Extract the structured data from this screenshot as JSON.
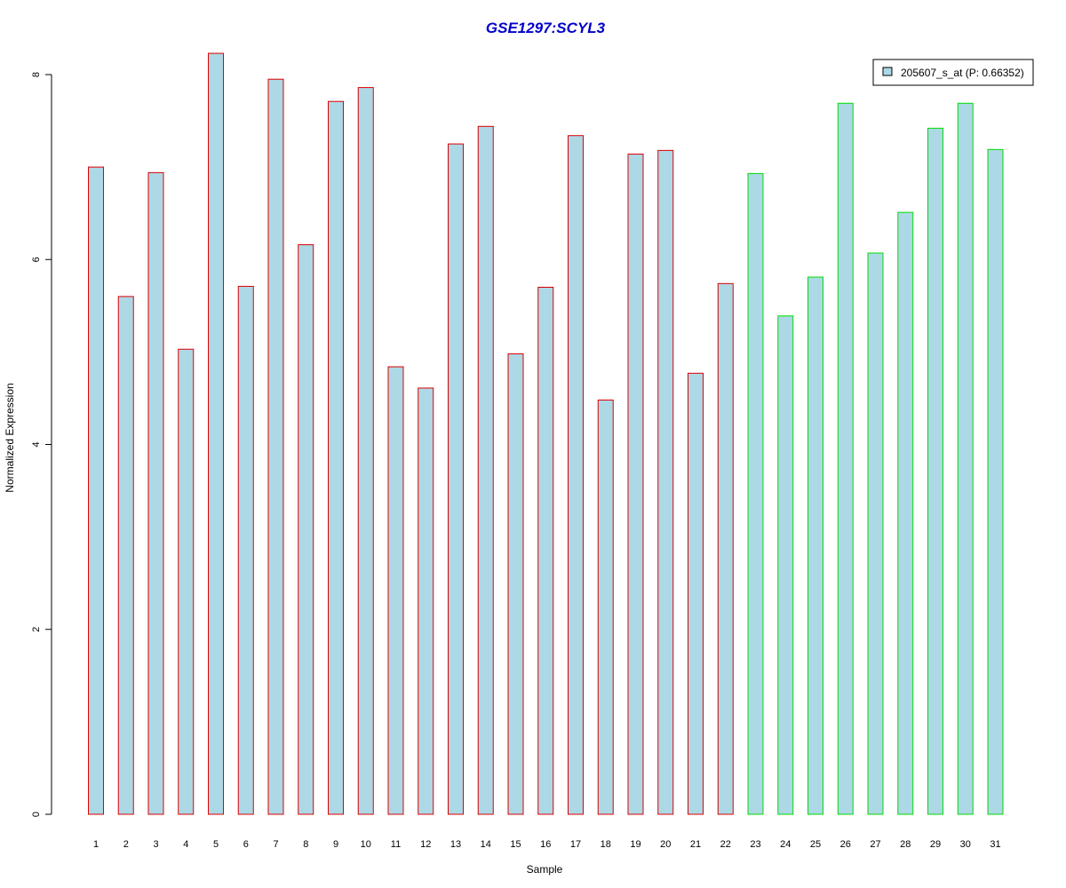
{
  "chart_data": {
    "type": "bar",
    "title": "GSE1297:SCYL3",
    "xlabel": "Sample",
    "ylabel": "Normalized Expression",
    "ylim": [
      0,
      8.2
    ],
    "yticks": [
      0,
      2,
      4,
      6,
      8
    ],
    "grid": false,
    "legend_position": "top-right",
    "categories": [
      "1",
      "2",
      "3",
      "4",
      "5",
      "6",
      "7",
      "8",
      "9",
      "10",
      "11",
      "12",
      "13",
      "14",
      "15",
      "16",
      "17",
      "18",
      "19",
      "20",
      "21",
      "22",
      "23",
      "24",
      "25",
      "26",
      "27",
      "28",
      "29",
      "30",
      "31"
    ],
    "series": [
      {
        "name": "205607_s_at (P: 0.66352)",
        "values": [
          7.0,
          5.6,
          6.94,
          5.03,
          8.23,
          5.71,
          7.95,
          6.16,
          7.71,
          7.86,
          4.84,
          4.61,
          7.25,
          7.44,
          4.98,
          5.7,
          7.34,
          4.48,
          7.14,
          7.18,
          4.77,
          5.74,
          6.93,
          5.39,
          5.81,
          7.69,
          6.07,
          6.51,
          7.42,
          7.69,
          7.19
        ]
      }
    ],
    "groups": [
      {
        "from": 1,
        "to": 22,
        "border_color": "#dd0000"
      },
      {
        "from": 23,
        "to": 31,
        "border_color": "#00dd00"
      }
    ],
    "bar_fill": "#add8e6",
    "title_color": "#0000cc"
  }
}
